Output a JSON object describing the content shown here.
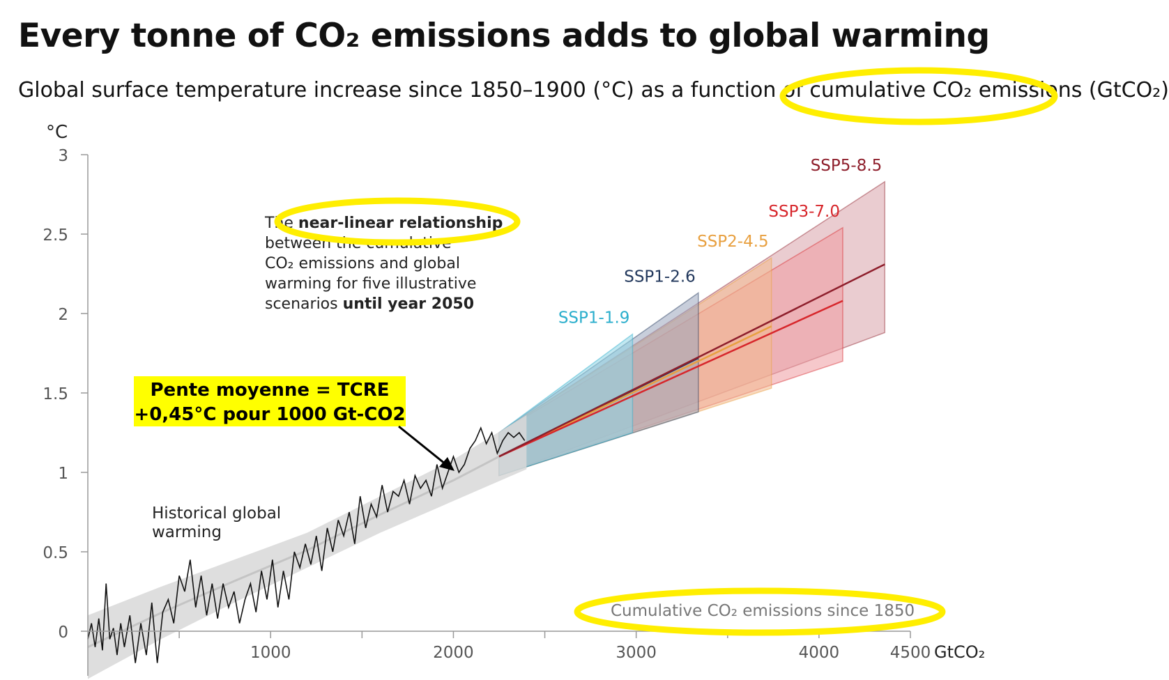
{
  "title": "Every tonne of CO₂ emissions adds to global warming",
  "subtitle": "Global surface temperature increase since 1850–1900 (°C) as a function of cumulative CO₂ emissions (GtCO₂)",
  "highlight_color": "#ffee00",
  "chart_data": {
    "type": "line",
    "ylabel": "°C",
    "xlabel": "Cumulative CO₂ emissions since 1850",
    "x_unit": "GtCO₂",
    "xlim": [
      0,
      4500
    ],
    "ylim": [
      0,
      3
    ],
    "x_ticks": [
      "1000",
      "2000",
      "3000",
      "4000",
      "4500"
    ],
    "y_ticks": [
      "0",
      "0.5",
      "1",
      "1.5",
      "2",
      "2.5",
      "3"
    ],
    "historical_label": "Historical global warming",
    "annotation": {
      "line1_a": "The ",
      "line1_b": "near-linear relationship",
      "line2": "between the cumulative",
      "line3": "CO₂ emissions and global",
      "line4": "warming for five illustrative",
      "line5_a": "scenarios ",
      "line5_b": "until year 2050"
    },
    "callout": {
      "line1": "Pente moyenne = TCRE",
      "line2": "+0,45°C  pour 1000 Gt-CO2"
    },
    "historical": {
      "x": [
        0,
        20,
        40,
        60,
        80,
        100,
        120,
        140,
        160,
        180,
        200,
        230,
        260,
        290,
        320,
        350,
        380,
        410,
        440,
        470,
        500,
        530,
        560,
        590,
        620,
        650,
        680,
        710,
        740,
        770,
        800,
        830,
        860,
        890,
        920,
        950,
        980,
        1010,
        1040,
        1070,
        1100,
        1130,
        1160,
        1190,
        1220,
        1250,
        1280,
        1310,
        1340,
        1370,
        1400,
        1430,
        1460,
        1490,
        1520,
        1550,
        1580,
        1610,
        1640,
        1670,
        1700,
        1730,
        1760,
        1790,
        1820,
        1850,
        1880,
        1910,
        1940,
        1970,
        2000,
        2030,
        2060,
        2090,
        2120,
        2150,
        2180,
        2210,
        2240,
        2270,
        2300,
        2330,
        2360,
        2390
      ],
      "y": [
        -0.05,
        0.05,
        -0.1,
        0.08,
        -0.12,
        0.3,
        -0.05,
        0.02,
        -0.15,
        0.05,
        -0.1,
        0.1,
        -0.2,
        0.05,
        -0.15,
        0.18,
        -0.2,
        0.12,
        0.2,
        0.05,
        0.35,
        0.25,
        0.45,
        0.15,
        0.35,
        0.1,
        0.3,
        0.08,
        0.3,
        0.15,
        0.25,
        0.05,
        0.2,
        0.3,
        0.12,
        0.38,
        0.2,
        0.45,
        0.15,
        0.38,
        0.2,
        0.5,
        0.4,
        0.55,
        0.42,
        0.6,
        0.38,
        0.65,
        0.5,
        0.7,
        0.6,
        0.75,
        0.55,
        0.85,
        0.65,
        0.8,
        0.72,
        0.92,
        0.75,
        0.88,
        0.85,
        0.95,
        0.8,
        0.98,
        0.9,
        0.95,
        0.85,
        1.05,
        0.9,
        1.0,
        1.1,
        1.0,
        1.05,
        1.15,
        1.2,
        1.28,
        1.18,
        1.25,
        1.12,
        1.2,
        1.25,
        1.22,
        1.25,
        1.2
      ]
    },
    "historical_band": {
      "x": [
        0,
        400,
        800,
        1200,
        1600,
        2000,
        2400
      ],
      "lower": [
        -0.3,
        -0.05,
        0.18,
        0.4,
        0.62,
        0.82,
        1.02
      ],
      "upper": [
        0.1,
        0.28,
        0.45,
        0.62,
        0.85,
        1.08,
        1.36
      ]
    },
    "series": [
      {
        "name": "SSP1-1.9",
        "color": "#2aaecc",
        "x": [
          2250,
          2980
        ],
        "y": [
          1.1,
          1.52
        ],
        "band_lower": [
          0.98,
          1.25
        ],
        "band_upper": [
          1.25,
          1.87
        ]
      },
      {
        "name": "SSP1-2.6",
        "color": "#23395d",
        "x": [
          2250,
          3340
        ],
        "y": [
          1.1,
          1.72
        ],
        "band_lower": [
          0.98,
          1.38
        ],
        "band_upper": [
          1.25,
          2.13
        ]
      },
      {
        "name": "SSP2-4.5",
        "color": "#e8a040",
        "x": [
          2250,
          3740
        ],
        "y": [
          1.1,
          1.92
        ],
        "band_lower": [
          0.98,
          1.53
        ],
        "band_upper": [
          1.25,
          2.35
        ]
      },
      {
        "name": "SSP3-7.0",
        "color": "#d7262b",
        "x": [
          2250,
          4130
        ],
        "y": [
          1.1,
          2.08
        ],
        "band_lower": [
          0.98,
          1.7
        ],
        "band_upper": [
          1.25,
          2.54
        ]
      },
      {
        "name": "SSP5-8.5",
        "color": "#8e1e2b",
        "x": [
          2250,
          4360
        ],
        "y": [
          1.1,
          2.31
        ],
        "band_lower": [
          0.98,
          1.88
        ],
        "band_upper": [
          1.25,
          2.83
        ]
      }
    ]
  }
}
